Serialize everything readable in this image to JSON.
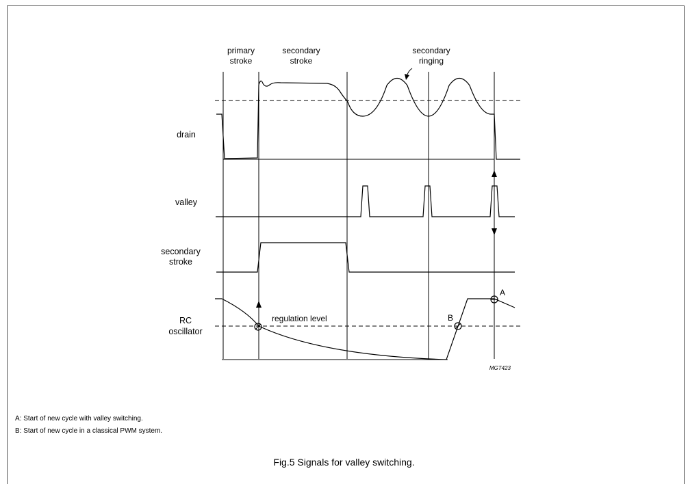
{
  "diagram": {
    "header_labels": {
      "primary_stroke": [
        "primary",
        "stroke"
      ],
      "secondary_stroke": [
        "secondary",
        "stroke"
      ],
      "secondary_ringing": [
        "secondary",
        "ringing"
      ]
    },
    "signals": {
      "drain": "drain",
      "valley": "valley",
      "secondary_stroke": [
        "secondary",
        "stroke"
      ],
      "rc_oscillator": [
        "RC",
        "oscillator"
      ]
    },
    "annotations": {
      "regulation_level": "regulation level",
      "point_a": "A",
      "point_b": "B",
      "code": "MGT423"
    }
  },
  "notes": {
    "a": "A: Start of new cycle with valley switching.",
    "b": "B: Start of new cycle in a classical PWM system."
  },
  "caption": "Fig.5  Signals for valley switching."
}
